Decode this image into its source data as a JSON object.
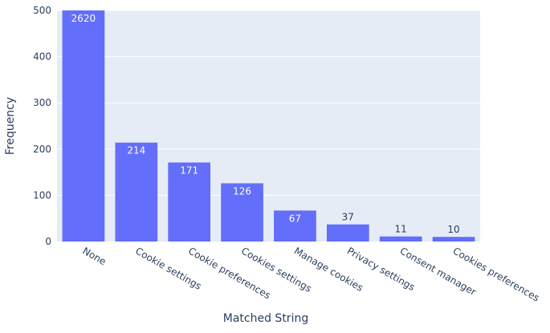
{
  "chart_data": {
    "type": "bar",
    "categories": [
      "None",
      "Cookie settings",
      "Cookie preferences",
      "Cookies settings",
      "Manage cookies",
      "Privacy settings",
      "Consent manager",
      "Cookies preferences"
    ],
    "values": [
      2620,
      214,
      171,
      126,
      67,
      37,
      11,
      10
    ],
    "data_labels": [
      "2620",
      "214",
      "171",
      "126",
      "67",
      "37",
      "11",
      "10"
    ],
    "xlabel": "Matched String",
    "ylabel": "Frequency",
    "ylim": [
      0,
      500
    ],
    "yticks": [
      0,
      100,
      200,
      300,
      400,
      500
    ],
    "grid": true,
    "colors": {
      "bar": "#636efa",
      "plot_bg": "#e5ecf6",
      "grid": "#ffffff",
      "text": "#2a3f5f"
    }
  }
}
